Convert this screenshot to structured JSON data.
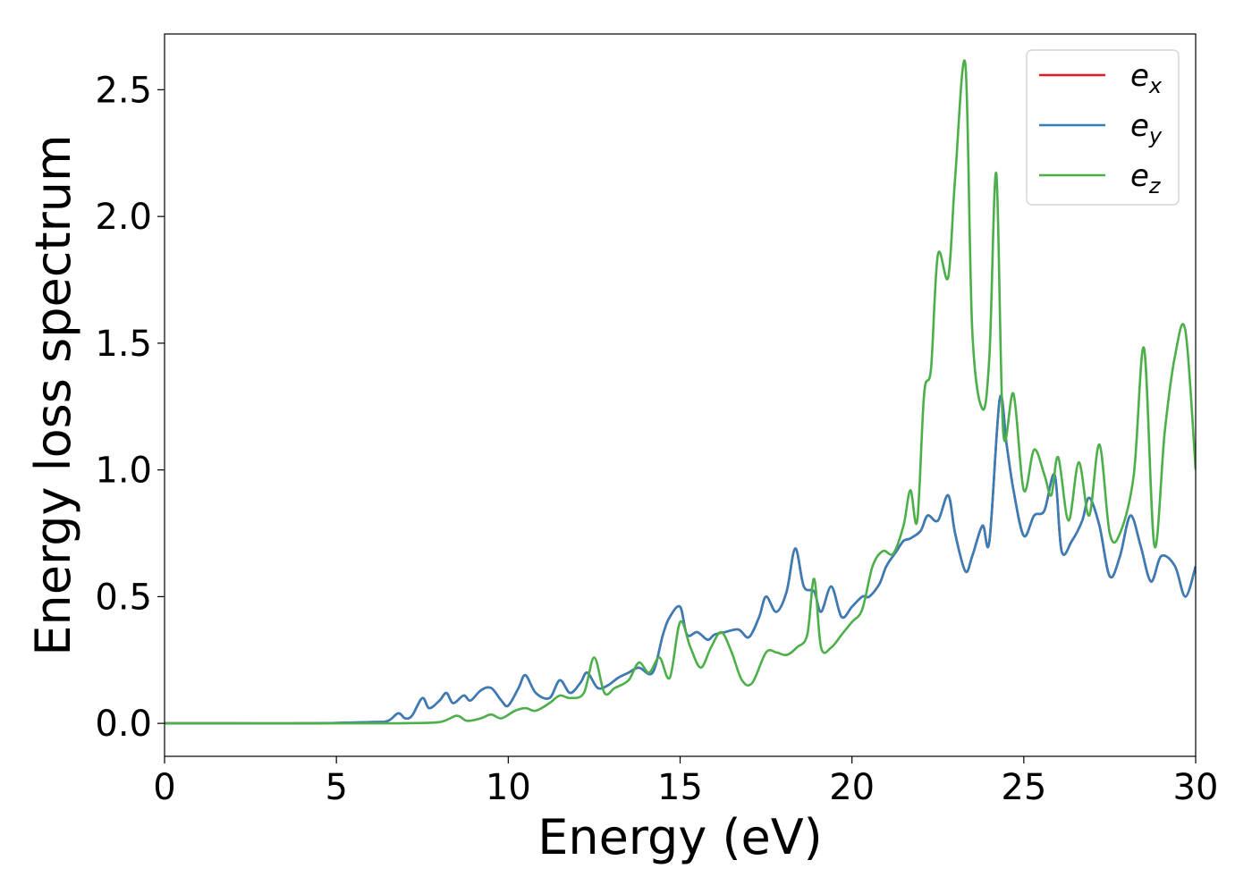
{
  "chart_data": {
    "type": "line",
    "title": "",
    "xlabel": "Energy (eV)",
    "ylabel": "Energy loss spectrum",
    "xlim": [
      0,
      30
    ],
    "ylim": [
      -0.13,
      2.72
    ],
    "xticks": [
      0,
      5,
      10,
      15,
      20,
      25,
      30
    ],
    "xtick_labels": [
      "0",
      "5",
      "10",
      "15",
      "20",
      "25",
      "30"
    ],
    "yticks": [
      0.0,
      0.5,
      1.0,
      1.5,
      2.0,
      2.5
    ],
    "ytick_labels": [
      "0.0",
      "0.5",
      "1.0",
      "1.5",
      "2.0",
      "2.5"
    ],
    "grid": false,
    "legend_position": "top-right",
    "series": [
      {
        "name": "e_x",
        "label_base": "e",
        "label_sub": "x",
        "color": "#e41a1c",
        "x": [
          0,
          2,
          4,
          6,
          6.5,
          6.8,
          7.0,
          7.2,
          7.5,
          7.7,
          8.0,
          8.2,
          8.4,
          8.7,
          8.9,
          9.2,
          9.5,
          9.8,
          10.0,
          10.3,
          10.5,
          10.8,
          11.2,
          11.5,
          11.8,
          12.1,
          12.3,
          12.6,
          12.9,
          13.2,
          13.5,
          13.8,
          14.2,
          14.5,
          14.7,
          15.0,
          15.2,
          15.5,
          15.8,
          16.0,
          16.3,
          16.7,
          17.0,
          17.3,
          17.5,
          17.8,
          18.1,
          18.35,
          18.6,
          18.9,
          19.1,
          19.4,
          19.7,
          20.0,
          20.3,
          20.5,
          20.8,
          21.0,
          21.3,
          21.5,
          21.7,
          22.0,
          22.2,
          22.5,
          22.8,
          23.0,
          23.3,
          23.5,
          23.8,
          24.0,
          24.3,
          24.5,
          24.7,
          25.0,
          25.3,
          25.6,
          25.9,
          26.1,
          26.4,
          26.7,
          26.9,
          27.2,
          27.5,
          27.8,
          28.1,
          28.4,
          28.7,
          29.0,
          29.4,
          29.7,
          30.0
        ],
        "y": [
          0,
          0,
          0,
          0.005,
          0.01,
          0.04,
          0.02,
          0.03,
          0.1,
          0.06,
          0.09,
          0.12,
          0.08,
          0.11,
          0.09,
          0.13,
          0.14,
          0.09,
          0.07,
          0.14,
          0.19,
          0.12,
          0.1,
          0.17,
          0.12,
          0.16,
          0.2,
          0.14,
          0.15,
          0.18,
          0.2,
          0.22,
          0.2,
          0.35,
          0.42,
          0.46,
          0.35,
          0.36,
          0.33,
          0.35,
          0.36,
          0.37,
          0.34,
          0.42,
          0.5,
          0.44,
          0.52,
          0.69,
          0.54,
          0.52,
          0.44,
          0.54,
          0.42,
          0.46,
          0.5,
          0.5,
          0.55,
          0.62,
          0.68,
          0.72,
          0.73,
          0.76,
          0.82,
          0.8,
          0.9,
          0.75,
          0.6,
          0.66,
          0.78,
          0.72,
          1.28,
          1.1,
          0.92,
          0.74,
          0.82,
          0.84,
          0.98,
          0.68,
          0.72,
          0.8,
          0.89,
          0.78,
          0.58,
          0.66,
          0.82,
          0.7,
          0.56,
          0.66,
          0.62,
          0.5,
          0.62
        ]
      },
      {
        "name": "e_y",
        "label_base": "e",
        "label_sub": "y",
        "color": "#377eb8",
        "x": [
          0,
          2,
          4,
          6,
          6.5,
          6.8,
          7.0,
          7.2,
          7.5,
          7.7,
          8.0,
          8.2,
          8.4,
          8.7,
          8.9,
          9.2,
          9.5,
          9.8,
          10.0,
          10.3,
          10.5,
          10.8,
          11.2,
          11.5,
          11.8,
          12.1,
          12.3,
          12.6,
          12.9,
          13.2,
          13.5,
          13.8,
          14.2,
          14.5,
          14.7,
          15.0,
          15.2,
          15.5,
          15.8,
          16.0,
          16.3,
          16.7,
          17.0,
          17.3,
          17.5,
          17.8,
          18.1,
          18.35,
          18.6,
          18.9,
          19.1,
          19.4,
          19.7,
          20.0,
          20.3,
          20.5,
          20.8,
          21.0,
          21.3,
          21.5,
          21.7,
          22.0,
          22.2,
          22.5,
          22.8,
          23.0,
          23.3,
          23.5,
          23.8,
          24.0,
          24.3,
          24.5,
          24.7,
          25.0,
          25.3,
          25.6,
          25.9,
          26.1,
          26.4,
          26.7,
          26.9,
          27.2,
          27.5,
          27.8,
          28.1,
          28.4,
          28.7,
          29.0,
          29.4,
          29.7,
          30.0
        ],
        "y": [
          0,
          0,
          0,
          0.005,
          0.01,
          0.04,
          0.02,
          0.03,
          0.1,
          0.06,
          0.09,
          0.12,
          0.08,
          0.11,
          0.09,
          0.13,
          0.14,
          0.09,
          0.07,
          0.14,
          0.19,
          0.12,
          0.1,
          0.17,
          0.12,
          0.16,
          0.2,
          0.14,
          0.15,
          0.18,
          0.2,
          0.22,
          0.2,
          0.35,
          0.42,
          0.46,
          0.35,
          0.36,
          0.33,
          0.35,
          0.36,
          0.37,
          0.34,
          0.42,
          0.5,
          0.44,
          0.52,
          0.69,
          0.54,
          0.52,
          0.44,
          0.54,
          0.42,
          0.46,
          0.5,
          0.5,
          0.55,
          0.62,
          0.68,
          0.72,
          0.73,
          0.76,
          0.82,
          0.8,
          0.9,
          0.75,
          0.6,
          0.66,
          0.78,
          0.72,
          1.28,
          1.1,
          0.92,
          0.74,
          0.82,
          0.84,
          0.98,
          0.68,
          0.72,
          0.8,
          0.89,
          0.78,
          0.58,
          0.66,
          0.82,
          0.7,
          0.56,
          0.66,
          0.62,
          0.5,
          0.62
        ]
      },
      {
        "name": "e_z",
        "label_base": "e",
        "label_sub": "z",
        "color": "#4daf4a",
        "x": [
          0,
          2,
          4,
          6,
          7,
          8,
          8.5,
          8.8,
          9.2,
          9.5,
          9.8,
          10.2,
          10.5,
          10.8,
          11.2,
          11.5,
          11.8,
          12.2,
          12.5,
          12.8,
          13.1,
          13.5,
          13.8,
          14.1,
          14.4,
          14.7,
          15.0,
          15.3,
          15.6,
          15.9,
          16.2,
          16.5,
          16.8,
          17.1,
          17.5,
          17.8,
          18.1,
          18.4,
          18.7,
          18.9,
          19.1,
          19.4,
          19.7,
          20.0,
          20.3,
          20.6,
          20.9,
          21.2,
          21.5,
          21.7,
          21.9,
          22.1,
          22.3,
          22.5,
          22.8,
          23.0,
          23.3,
          23.5,
          23.8,
          24.0,
          24.2,
          24.4,
          24.7,
          25.0,
          25.3,
          25.6,
          25.8,
          26.0,
          26.3,
          26.6,
          26.9,
          27.2,
          27.5,
          27.8,
          28.2,
          28.5,
          28.8,
          29.1,
          29.4,
          29.7,
          30.0
        ],
        "y": [
          0,
          0,
          0,
          0,
          0.001,
          0.005,
          0.03,
          0.01,
          0.02,
          0.035,
          0.02,
          0.05,
          0.06,
          0.05,
          0.08,
          0.11,
          0.1,
          0.12,
          0.26,
          0.12,
          0.14,
          0.17,
          0.24,
          0.2,
          0.26,
          0.18,
          0.4,
          0.3,
          0.22,
          0.3,
          0.36,
          0.28,
          0.17,
          0.16,
          0.28,
          0.28,
          0.27,
          0.3,
          0.35,
          0.57,
          0.3,
          0.3,
          0.35,
          0.4,
          0.45,
          0.62,
          0.68,
          0.67,
          0.78,
          0.92,
          0.8,
          1.3,
          1.4,
          1.85,
          1.76,
          2.15,
          2.6,
          1.55,
          1.24,
          1.45,
          2.17,
          1.15,
          1.3,
          0.92,
          1.08,
          0.98,
          0.9,
          1.05,
          0.8,
          1.03,
          0.82,
          1.1,
          0.75,
          0.75,
          0.98,
          1.48,
          0.7,
          1.15,
          1.45,
          1.55,
          1.0
        ]
      }
    ]
  }
}
